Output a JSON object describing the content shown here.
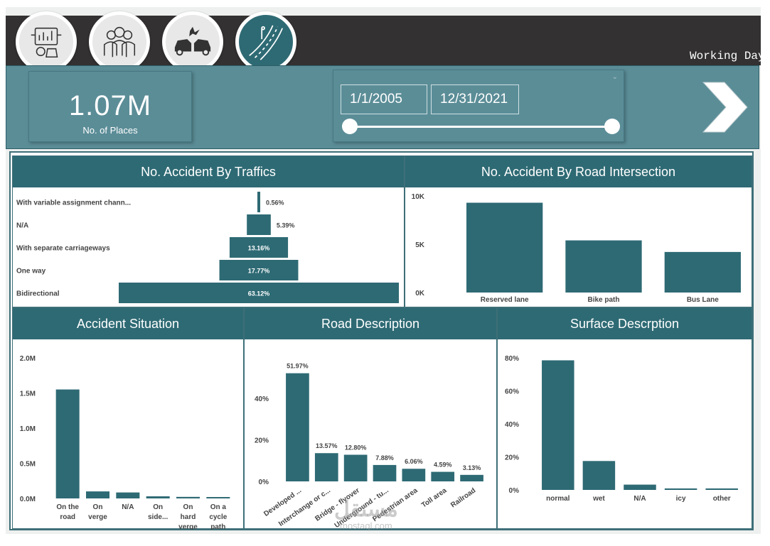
{
  "header": {
    "nav_icons": [
      {
        "name": "dashboard-panel-icon",
        "active": false
      },
      {
        "name": "people-group-icon",
        "active": false
      },
      {
        "name": "car-crash-icon",
        "active": false
      },
      {
        "name": "road-icon",
        "active": true
      }
    ],
    "working_day_label": "Working Day"
  },
  "kpi": {
    "value": "1.07M",
    "label": "No. of Places"
  },
  "date_slicer": {
    "start": "1/1/2005",
    "end": "12/31/2021"
  },
  "colors": {
    "bar": "#2e6a74",
    "header": "#2e6a74",
    "topbar": "#333131",
    "band": "#5b8d97"
  },
  "chart_data": [
    {
      "type": "bar",
      "orientation": "horizontal-funnel",
      "title": "No. Accident By Traffics",
      "categories": [
        "With variable assignment chann...",
        "N/A",
        "With separate carriageways",
        "One way",
        "Bidirectional"
      ],
      "values": [
        0.56,
        5.39,
        13.16,
        17.77,
        63.12
      ],
      "labels": [
        "0.56%",
        "5.39%",
        "13.16%",
        "17.77%",
        "63.12%"
      ]
    },
    {
      "type": "bar",
      "title": "No. Accident By Road Intersection",
      "categories": [
        "Reserved lane",
        "Bike path",
        "Bus Lane"
      ],
      "values": [
        9300,
        5400,
        4200
      ],
      "yticks": [
        "10K",
        "5K",
        "0K"
      ],
      "ylim": [
        0,
        10000
      ]
    },
    {
      "type": "bar",
      "title": "Accident Situation",
      "categories": [
        "On the road",
        "On verge",
        "N/A",
        "On side...",
        "On hard verge",
        "On a cycle path"
      ],
      "values": [
        1550000,
        100000,
        85000,
        30000,
        22000,
        20000
      ],
      "yticks": [
        "2.0M",
        "1.5M",
        "1.0M",
        "0.5M",
        "0.0M"
      ],
      "ylim": [
        0,
        2000000
      ]
    },
    {
      "type": "bar",
      "title": "Road Description",
      "categories": [
        "Developed ...",
        "Interchange or c...",
        "Bridge - flyover",
        "Underground - tu...",
        "Pedestrian area",
        "Toll area",
        "Railroad"
      ],
      "values": [
        51.97,
        13.57,
        12.8,
        7.88,
        6.06,
        4.59,
        3.13
      ],
      "labels": [
        "51.97%",
        "13.57%",
        "12.80%",
        "7.88%",
        "6.06%",
        "4.59%",
        "3.13%"
      ],
      "yticks": [
        "40%",
        "20%",
        "0%"
      ],
      "ylim": [
        0,
        58
      ]
    },
    {
      "type": "bar",
      "title": "Surface Descrption",
      "categories": [
        "normal",
        "wet",
        "N/A",
        "icy",
        "other"
      ],
      "values": [
        78.5,
        17.5,
        3.2,
        0.9,
        0.9
      ],
      "yticks": [
        "80%",
        "60%",
        "40%",
        "20%",
        "0%"
      ],
      "ylim": [
        0,
        80
      ]
    }
  ],
  "watermark": {
    "text": "مستقل",
    "sub": "mostaql.com"
  }
}
